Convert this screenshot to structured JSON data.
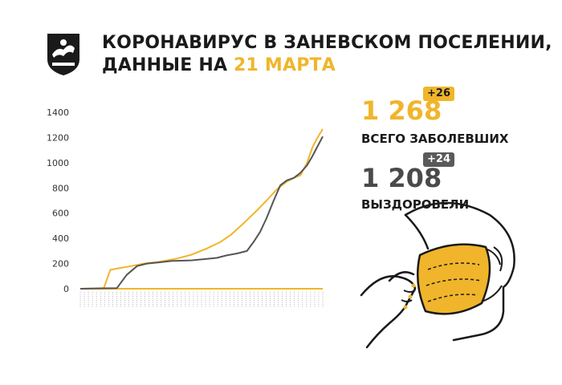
{
  "header": {
    "title_line1": "КОРОНАВИРУС В ЗАНЕВСКОМ ПОСЕЛЕНИИ,",
    "title_line2_prefix": "ДАННЫЕ НА",
    "title_date": "21 МАРТА"
  },
  "stats": {
    "total_cases": "1 268",
    "total_cases_delta": "+26",
    "total_cases_label": "ВСЕГО ЗАБОЛЕВШИХ",
    "recovered": "1 208",
    "recovered_delta": "+24",
    "recovered_label": "ВЫЗДОРОВЕЛИ"
  },
  "colors": {
    "accent": "#f0b52a",
    "dark": "#333333",
    "recovered_line": "#555555",
    "cases_line": "#f0b52a"
  },
  "icons": [
    "coat-of-arms-logo",
    "masked-face-illustration"
  ],
  "chart_data": {
    "type": "line",
    "ylim": [
      0,
      1400
    ],
    "yticks": [
      0,
      200,
      400,
      600,
      800,
      1000,
      1200,
      1400
    ],
    "x_start": "2020-03-15",
    "x_end": "2021-03-21",
    "series": [
      {
        "key": "cases",
        "points": [
          [
            "2020-03-15",
            0
          ],
          [
            "2020-04-20",
            5
          ],
          [
            "2020-04-30",
            150
          ],
          [
            "2020-05-15",
            165
          ],
          [
            "2020-06-01",
            180
          ],
          [
            "2020-06-20",
            200
          ],
          [
            "2020-07-15",
            215
          ],
          [
            "2020-08-10",
            240
          ],
          [
            "2020-09-01",
            270
          ],
          [
            "2020-09-25",
            320
          ],
          [
            "2020-10-15",
            370
          ],
          [
            "2020-11-01",
            430
          ],
          [
            "2020-11-20",
            520
          ],
          [
            "2020-12-10",
            620
          ],
          [
            "2020-12-25",
            700
          ],
          [
            "2021-01-10",
            790
          ],
          [
            "2021-01-25",
            850
          ],
          [
            "2021-02-05",
            880
          ],
          [
            "2021-02-15",
            900
          ],
          [
            "2021-02-25",
            1000
          ],
          [
            "2021-03-05",
            1120
          ],
          [
            "2021-03-12",
            1190
          ],
          [
            "2021-03-21",
            1268
          ]
        ]
      },
      {
        "key": "recovered",
        "points": [
          [
            "2020-03-15",
            0
          ],
          [
            "2020-05-10",
            5
          ],
          [
            "2020-05-25",
            110
          ],
          [
            "2020-06-10",
            180
          ],
          [
            "2020-06-25",
            200
          ],
          [
            "2020-07-15",
            210
          ],
          [
            "2020-08-01",
            220
          ],
          [
            "2020-09-01",
            225
          ],
          [
            "2020-09-20",
            235
          ],
          [
            "2020-10-10",
            245
          ],
          [
            "2020-10-25",
            265
          ],
          [
            "2020-11-10",
            280
          ],
          [
            "2020-11-25",
            300
          ],
          [
            "2020-12-05",
            370
          ],
          [
            "2020-12-15",
            450
          ],
          [
            "2020-12-25",
            560
          ],
          [
            "2021-01-05",
            700
          ],
          [
            "2021-01-15",
            820
          ],
          [
            "2021-01-25",
            860
          ],
          [
            "2021-02-05",
            880
          ],
          [
            "2021-02-15",
            920
          ],
          [
            "2021-02-25",
            980
          ],
          [
            "2021-03-05",
            1050
          ],
          [
            "2021-03-12",
            1120
          ],
          [
            "2021-03-21",
            1208
          ]
        ]
      }
    ]
  }
}
